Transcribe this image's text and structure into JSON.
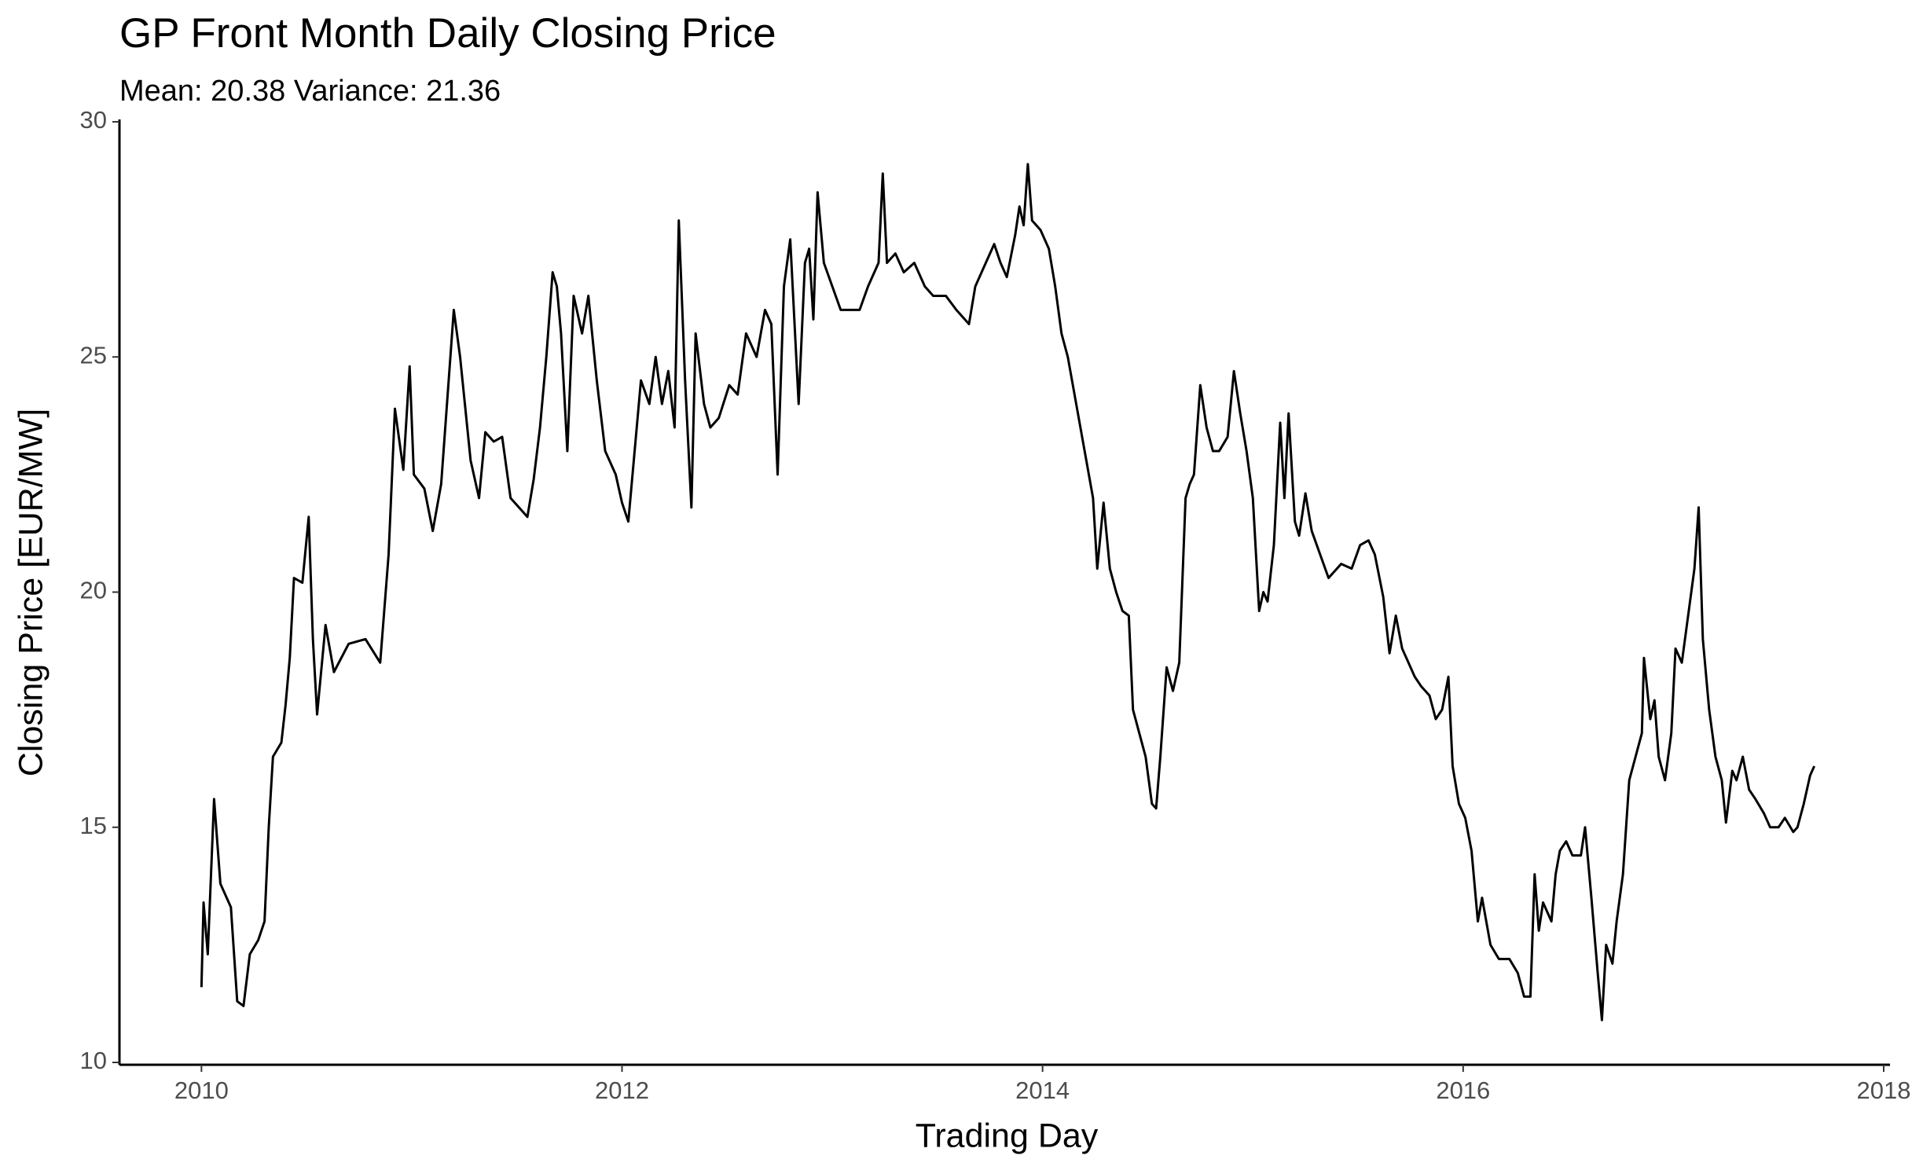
{
  "chart_data": {
    "type": "line",
    "title": "GP Front Month Daily Closing Price",
    "subtitle": "Mean: 20.38 Variance: 21.36",
    "x_label": "Trading Day",
    "y_label": "Closing Price [EUR/MW]",
    "x": [
      2010.0,
      2010.01,
      2010.03,
      2010.06,
      2010.09,
      2010.14,
      2010.17,
      2010.2,
      2010.23,
      2010.27,
      2010.3,
      2010.32,
      2010.34,
      2010.38,
      2010.4,
      2010.42,
      2010.44,
      2010.48,
      2010.51,
      2010.53,
      2010.55,
      2010.59,
      2010.63,
      2010.7,
      2010.78,
      2010.85,
      2010.89,
      2010.92,
      2010.96,
      2010.99,
      2011.01,
      2011.06,
      2011.1,
      2011.14,
      2011.2,
      2011.23,
      2011.28,
      2011.32,
      2011.35,
      2011.39,
      2011.43,
      2011.47,
      2011.51,
      2011.55,
      2011.58,
      2011.61,
      2011.64,
      2011.67,
      2011.69,
      2011.71,
      2011.74,
      2011.77,
      2011.81,
      2011.84,
      2011.88,
      2011.92,
      2011.97,
      2012.0,
      2012.03,
      2012.06,
      2012.09,
      2012.13,
      2012.16,
      2012.19,
      2012.22,
      2012.25,
      2012.27,
      2012.3,
      2012.33,
      2012.35,
      2012.39,
      2012.42,
      2012.46,
      2012.51,
      2012.55,
      2012.59,
      2012.64,
      2012.68,
      2012.71,
      2012.74,
      2012.77,
      2012.8,
      2012.84,
      2012.87,
      2012.89,
      2012.91,
      2012.93,
      2012.96,
      2013.0,
      2013.04,
      2013.09,
      2013.13,
      2013.17,
      2013.22,
      2013.24,
      2013.26,
      2013.3,
      2013.34,
      2013.39,
      2013.44,
      2013.48,
      2013.54,
      2013.59,
      2013.65,
      2013.68,
      2013.73,
      2013.77,
      2013.8,
      2013.83,
      2013.87,
      2013.89,
      2013.91,
      2013.93,
      2013.95,
      2013.99,
      2014.03,
      2014.06,
      2014.09,
      2014.12,
      2014.16,
      2014.2,
      2014.24,
      2014.26,
      2014.29,
      2014.32,
      2014.35,
      2014.38,
      2014.41,
      2014.43,
      2014.46,
      2014.49,
      2014.52,
      2014.54,
      2014.56,
      2014.59,
      2014.62,
      2014.65,
      2014.68,
      2014.7,
      2014.72,
      2014.75,
      2014.78,
      2014.81,
      2014.84,
      2014.88,
      2014.91,
      2014.94,
      2014.97,
      2015.0,
      2015.03,
      2015.05,
      2015.07,
      2015.1,
      2015.13,
      2015.15,
      2015.17,
      2015.2,
      2015.22,
      2015.25,
      2015.28,
      2015.32,
      2015.36,
      2015.42,
      2015.47,
      2015.51,
      2015.55,
      2015.58,
      2015.62,
      2015.65,
      2015.68,
      2015.71,
      2015.74,
      2015.77,
      2015.8,
      2015.84,
      2015.87,
      2015.9,
      2015.93,
      2015.95,
      2015.98,
      2016.01,
      2016.04,
      2016.07,
      2016.09,
      2016.13,
      2016.17,
      2016.22,
      2016.26,
      2016.29,
      2016.32,
      2016.34,
      2016.36,
      2016.38,
      2016.42,
      2016.44,
      2016.46,
      2016.49,
      2016.52,
      2016.56,
      2016.58,
      2016.61,
      2016.64,
      2016.66,
      2016.68,
      2016.71,
      2016.73,
      2016.76,
      2016.79,
      2016.82,
      2016.85,
      2016.86,
      2016.89,
      2016.91,
      2016.93,
      2016.96,
      2016.99,
      2017.01,
      2017.04,
      2017.07,
      2017.1,
      2017.12,
      2017.14,
      2017.17,
      2017.2,
      2017.23,
      2017.25,
      2017.28,
      2017.3,
      2017.33,
      2017.36,
      2017.39,
      2017.43,
      2017.46,
      2017.5,
      2017.53,
      2017.57,
      2017.59,
      2017.62,
      2017.65,
      2017.67
    ],
    "series": [
      {
        "color": "#000000",
        "values": [
          11.6,
          13.4,
          12.3,
          15.6,
          13.8,
          13.3,
          11.3,
          11.2,
          12.3,
          12.6,
          13.0,
          15.0,
          16.5,
          16.8,
          17.6,
          18.6,
          20.3,
          20.2,
          21.6,
          19.0,
          17.4,
          19.3,
          18.3,
          18.9,
          19.0,
          18.5,
          20.8,
          23.9,
          22.6,
          24.8,
          22.5,
          22.2,
          21.3,
          22.3,
          26.0,
          25.0,
          22.8,
          22.0,
          23.4,
          23.2,
          23.3,
          22.0,
          21.8,
          21.6,
          22.4,
          23.5,
          25.0,
          26.8,
          26.5,
          25.5,
          23.0,
          26.3,
          25.5,
          26.3,
          24.5,
          23.0,
          22.5,
          21.9,
          21.5,
          23.0,
          24.5,
          24.0,
          25.0,
          24.0,
          24.7,
          23.5,
          27.9,
          24.5,
          21.8,
          25.5,
          24.0,
          23.5,
          23.7,
          24.4,
          24.2,
          25.5,
          25.0,
          26.0,
          25.7,
          22.5,
          26.5,
          27.5,
          24.0,
          27.0,
          27.3,
          25.8,
          28.5,
          27.0,
          26.5,
          26.0,
          26.0,
          26.0,
          26.5,
          27.0,
          28.9,
          27.0,
          27.2,
          26.8,
          27.0,
          26.5,
          26.3,
          26.3,
          26.0,
          25.7,
          26.5,
          27.0,
          27.4,
          27.0,
          26.7,
          27.6,
          28.2,
          27.8,
          29.1,
          27.9,
          27.7,
          27.3,
          26.5,
          25.5,
          25.0,
          24.0,
          23.0,
          22.0,
          20.5,
          21.9,
          20.5,
          20.0,
          19.6,
          19.5,
          17.5,
          17.0,
          16.5,
          15.5,
          15.4,
          16.5,
          18.4,
          17.9,
          18.5,
          22.0,
          22.3,
          22.5,
          24.4,
          23.5,
          23.0,
          23.0,
          23.3,
          24.7,
          23.8,
          23.0,
          22.0,
          19.6,
          20.0,
          19.8,
          21.0,
          23.6,
          22.0,
          23.8,
          21.5,
          21.2,
          22.1,
          21.3,
          20.8,
          20.3,
          20.6,
          20.5,
          21.0,
          21.1,
          20.8,
          19.9,
          18.7,
          19.5,
          18.8,
          18.5,
          18.2,
          18.0,
          17.8,
          17.3,
          17.5,
          18.2,
          16.3,
          15.5,
          15.2,
          14.5,
          13.0,
          13.5,
          12.5,
          12.2,
          12.2,
          11.9,
          11.4,
          11.4,
          14.0,
          12.8,
          13.4,
          13.0,
          14.0,
          14.5,
          14.7,
          14.4,
          14.4,
          15.0,
          13.5,
          11.9,
          10.9,
          12.5,
          12.1,
          13.0,
          14.0,
          16.0,
          16.5,
          17.0,
          18.6,
          17.3,
          17.7,
          16.5,
          16.0,
          17.0,
          18.8,
          18.5,
          19.5,
          20.5,
          21.8,
          19.0,
          17.5,
          16.5,
          16.0,
          15.1,
          16.2,
          16.0,
          16.5,
          15.8,
          15.6,
          15.3,
          15.0,
          15.0,
          15.2,
          14.9,
          15.0,
          15.5,
          16.1,
          16.3
        ]
      }
    ],
    "xlim": [
      2009.61,
      2018.03
    ],
    "xticks": [
      2010,
      2012,
      2014,
      2016,
      2018
    ],
    "ylim": [
      9.95,
      30.05
    ],
    "yticks": [
      10,
      15,
      20,
      25,
      30
    ],
    "grid": false
  }
}
